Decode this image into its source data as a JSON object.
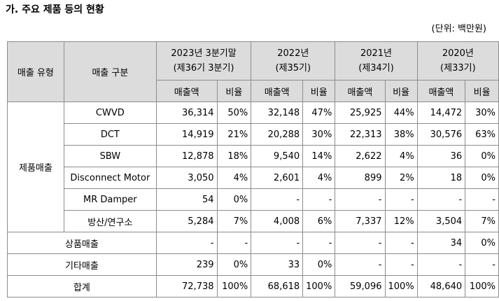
{
  "heading": "가. 주요 제품 등의 현황",
  "unit": "(단위: 백만원)",
  "table": {
    "col_sales_type": "매출 유형",
    "col_sales_category": "매출 구분",
    "periods": [
      {
        "line1": "2023년 3분기말",
        "line2": "(제36기 3분기)"
      },
      {
        "line1": "2022년",
        "line2": "(제35기)"
      },
      {
        "line1": "2021년",
        "line2": "(제34기)"
      },
      {
        "line1": "2020년",
        "line2": "(제33기)"
      }
    ],
    "sub_amount": "매출액",
    "sub_ratio": "비율",
    "product_group": "제품매출",
    "rows": [
      {
        "label": "CWVD",
        "cells": [
          "36,314",
          "50%",
          "32,148",
          "47%",
          "25,925",
          "44%",
          "14,472",
          "30%"
        ]
      },
      {
        "label": "DCT",
        "cells": [
          "14,919",
          "21%",
          "20,288",
          "30%",
          "22,313",
          "38%",
          "30,576",
          "63%"
        ]
      },
      {
        "label": "SBW",
        "cells": [
          "12,878",
          "18%",
          "9,540",
          "14%",
          "2,622",
          "4%",
          "36",
          "0%"
        ]
      },
      {
        "label": "Disconnect Motor",
        "cells": [
          "3,050",
          "4%",
          "2,601",
          "4%",
          "899",
          "2%",
          "18",
          "0%"
        ]
      },
      {
        "label": "MR Damper",
        "cells": [
          "54",
          "0%",
          "-",
          "-",
          "-",
          "-",
          "-",
          "-"
        ]
      },
      {
        "label": "방산/연구소",
        "cells": [
          "5,284",
          "7%",
          "4,008",
          "6%",
          "7,337",
          "12%",
          "3,504",
          "7%"
        ]
      }
    ],
    "merged_rows": [
      {
        "label": "상품매출",
        "cells": [
          "-",
          "-",
          "-",
          "-",
          "-",
          "-",
          "34",
          "0%"
        ]
      },
      {
        "label": "기타매출",
        "cells": [
          "239",
          "0%",
          "33",
          "0%",
          "-",
          "-",
          "-",
          "-"
        ]
      },
      {
        "label": "합계",
        "cells": [
          "72,738",
          "100%",
          "68,618",
          "100%",
          "59,096",
          "100%",
          "48,640",
          "100%"
        ]
      }
    ]
  }
}
